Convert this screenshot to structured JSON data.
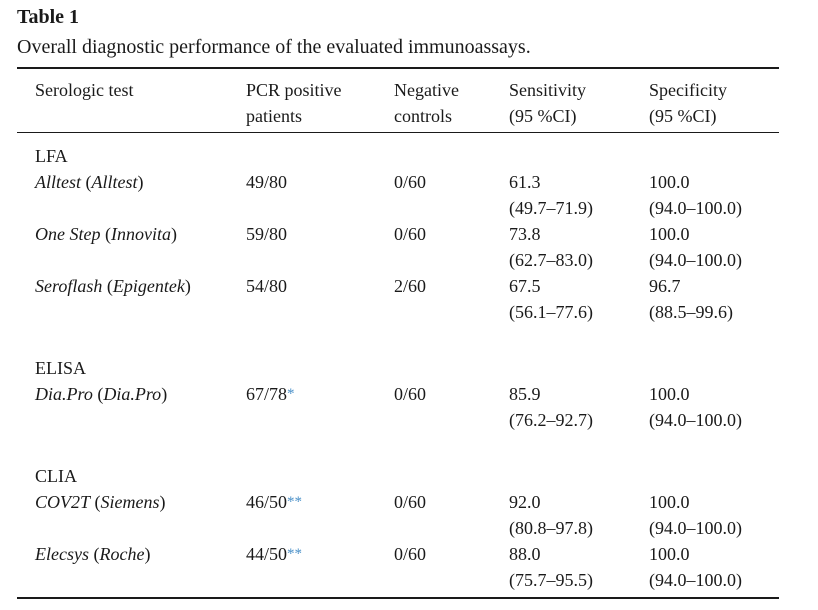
{
  "table_label": "Table 1",
  "caption": "Overall diagnostic performance of the evaluated immunoassays.",
  "headers": {
    "serologic_test": "Serologic test",
    "pcr_line1": "PCR positive",
    "pcr_line2": "patients",
    "neg_line1": "Negative",
    "neg_line2": "controls",
    "sens_line1": "Sensitivity",
    "sens_line2": "(95 %CI)",
    "spec_line1": "Specificity",
    "spec_line2": "(95 %CI)"
  },
  "groups": [
    {
      "category": "LFA",
      "rows": [
        {
          "name": "Alltest",
          "maker": "Alltest",
          "pcr": "49/80",
          "note": "",
          "neg": "0/60",
          "sens": "61.3",
          "sens_ci": "(49.7–71.9)",
          "spec": "100.0",
          "spec_ci": "(94.0–100.0)"
        },
        {
          "name": "One Step",
          "maker": "Innovita",
          "pcr": "59/80",
          "note": "",
          "neg": "0/60",
          "sens": "73.8",
          "sens_ci": "(62.7–83.0)",
          "spec": "100.0",
          "spec_ci": "(94.0–100.0)"
        },
        {
          "name": "Seroflash",
          "maker": "Epigentek",
          "pcr": "54/80",
          "note": "",
          "neg": "2/60",
          "sens": "67.5",
          "sens_ci": "(56.1–77.6)",
          "spec": "96.7",
          "spec_ci": "(88.5–99.6)"
        }
      ]
    },
    {
      "category": "ELISA",
      "rows": [
        {
          "name": "Dia.Pro",
          "maker": "Dia.Pro",
          "pcr": "67/78",
          "note": "*",
          "neg": "0/60",
          "sens": "85.9",
          "sens_ci": "(76.2–92.7)",
          "spec": "100.0",
          "spec_ci": "(94.0–100.0)"
        }
      ]
    },
    {
      "category": "CLIA",
      "rows": [
        {
          "name": "COV2T",
          "maker": "Siemens",
          "pcr": "46/50",
          "note": "**",
          "neg": "0/60",
          "sens": "92.0",
          "sens_ci": "(80.8–97.8)",
          "spec": "100.0",
          "spec_ci": "(94.0–100.0)"
        },
        {
          "name": "Elecsys",
          "maker": "Roche",
          "pcr": "44/50",
          "note": "**",
          "neg": "0/60",
          "sens": "88.0",
          "sens_ci": "(75.7–95.5)",
          "spec": "100.0",
          "spec_ci": "(94.0–100.0)"
        }
      ]
    }
  ]
}
